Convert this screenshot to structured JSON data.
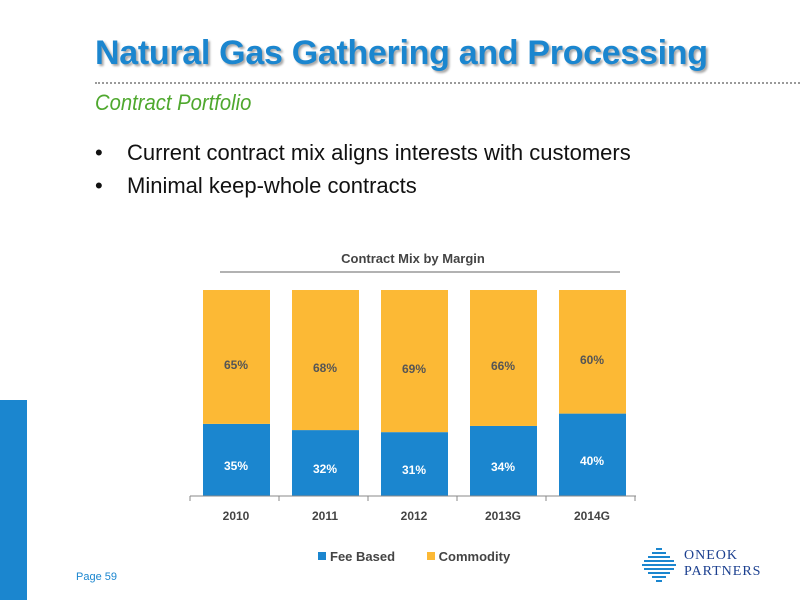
{
  "header": {
    "title": "Natural Gas Gathering and Processing",
    "subtitle": "Contract Portfolio"
  },
  "bullets": [
    "Current contract mix aligns interests with customers",
    "Minimal keep-whole contracts"
  ],
  "footer": {
    "page": "Page 59"
  },
  "logo": {
    "line1": "ONEOK",
    "line2": "PARTNERS"
  },
  "colors": {
    "title": "#1b86cf",
    "subtitle": "#4fa82e",
    "fee_based": "#1b86cf",
    "commodity": "#fcb935"
  },
  "chart_data": {
    "type": "bar",
    "stacked": true,
    "title": "Contract Mix by Margin",
    "categories": [
      "2010",
      "2011",
      "2012",
      "2013G",
      "2014G"
    ],
    "series": [
      {
        "name": "Fee Based",
        "values": [
          35,
          32,
          31,
          34,
          40
        ],
        "labels": [
          "35%",
          "32%",
          "31%",
          "34%",
          "40%"
        ],
        "color": "#1b86cf"
      },
      {
        "name": "Commodity",
        "values": [
          65,
          68,
          69,
          66,
          60
        ],
        "labels": [
          "65%",
          "68%",
          "69%",
          "66%",
          "60%"
        ],
        "color": "#fcb935"
      }
    ],
    "ylim": [
      0,
      100
    ],
    "grid": false,
    "legend": "bottom"
  }
}
